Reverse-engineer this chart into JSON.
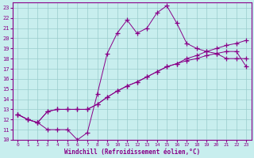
{
  "xlabel": "Windchill (Refroidissement éolien,°C)",
  "bg_color": "#c8eeee",
  "line_color": "#880088",
  "grid_color": "#99cccc",
  "xlim": [
    -0.5,
    23.5
  ],
  "ylim": [
    10,
    23.5
  ],
  "x_ticks": [
    0,
    1,
    2,
    3,
    4,
    5,
    6,
    7,
    8,
    9,
    10,
    11,
    12,
    13,
    14,
    15,
    16,
    17,
    18,
    19,
    20,
    21,
    22,
    23
  ],
  "y_ticks": [
    10,
    11,
    12,
    13,
    14,
    15,
    16,
    17,
    18,
    19,
    20,
    21,
    22,
    23
  ],
  "line1_x": [
    0,
    1,
    2,
    3,
    4,
    5,
    6,
    7,
    8,
    9,
    10,
    11,
    12,
    13,
    14,
    15,
    16,
    17,
    18,
    19,
    20,
    21,
    22,
    23
  ],
  "line1_y": [
    12.5,
    12.0,
    11.7,
    11.0,
    11.0,
    11.0,
    10.0,
    10.7,
    14.5,
    18.5,
    20.5,
    21.8,
    20.5,
    21.0,
    22.5,
    23.2,
    21.5,
    19.5,
    19.0,
    18.7,
    18.5,
    18.0,
    18.0,
    18.0
  ],
  "line2_x": [
    0,
    1,
    2,
    3,
    4,
    5,
    6,
    7,
    8,
    9,
    10,
    11,
    12,
    13,
    14,
    15,
    16,
    17,
    18,
    19,
    20,
    21,
    22,
    23
  ],
  "line2_y": [
    12.5,
    12.0,
    11.7,
    12.8,
    13.0,
    13.0,
    13.0,
    13.0,
    13.5,
    14.2,
    14.8,
    15.3,
    15.7,
    16.2,
    16.7,
    17.2,
    17.5,
    17.8,
    18.0,
    18.3,
    18.5,
    18.7,
    18.7,
    17.2
  ],
  "line3_x": [
    0,
    1,
    2,
    3,
    4,
    5,
    6,
    7,
    8,
    9,
    10,
    11,
    12,
    13,
    14,
    15,
    16,
    17,
    18,
    19,
    20,
    21,
    22,
    23
  ],
  "line3_y": [
    12.5,
    12.0,
    11.7,
    12.8,
    13.0,
    13.0,
    13.0,
    13.0,
    13.5,
    14.2,
    14.8,
    15.3,
    15.7,
    16.2,
    16.7,
    17.2,
    17.5,
    18.0,
    18.3,
    18.7,
    19.0,
    19.3,
    19.5,
    19.8
  ]
}
